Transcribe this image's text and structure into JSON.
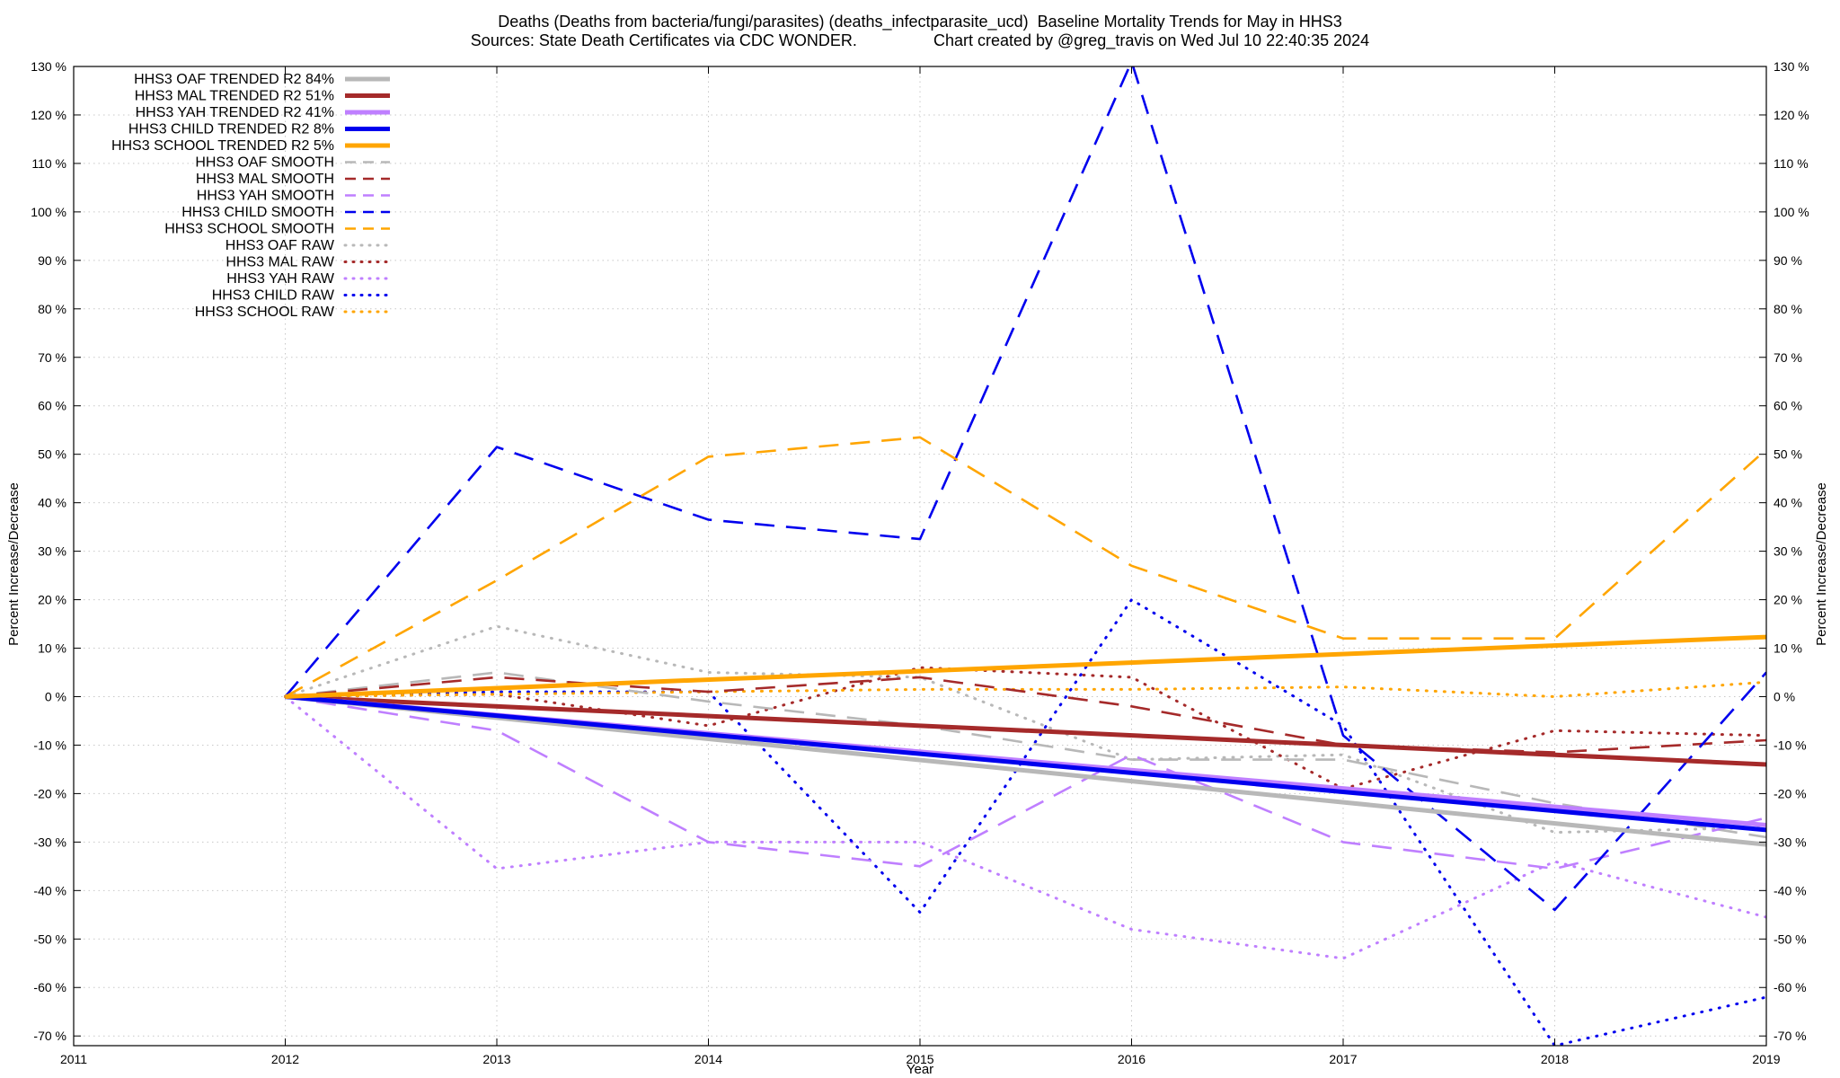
{
  "chart_data": {
    "type": "line",
    "title": "Deaths (Deaths from bacteria/fungi/parasites) (deaths_infectparasite_ucd)  Baseline Mortality Trends for May in HHS3",
    "subtitle": "Sources: State Death Certificates via CDC WONDER.                 Chart created by @greg_travis on Wed Jul 10 22:40:35 2024",
    "xlabel": "Year",
    "ylabel": "Percent Increase/Decrease",
    "y2label": "Percent Increase/Decrease",
    "xlim": [
      2011,
      2019
    ],
    "ylim": [
      -72,
      130
    ],
    "xticks": [
      "2011",
      "2012",
      "2013",
      "2014",
      "2015",
      "2016",
      "2017",
      "2018",
      "2019"
    ],
    "yticks": [
      "130 %",
      "120 %",
      "110 %",
      "100 %",
      "90 %",
      "80 %",
      "70 %",
      "60 %",
      "50 %",
      "40 %",
      "30 %",
      "20 %",
      "10 %",
      "0 %",
      "-10 %",
      "-20 %",
      "-30 %",
      "-40 %",
      "-50 %",
      "-60 %",
      "-70 %"
    ],
    "grid": true,
    "legend_position": "top-left",
    "series": [
      {
        "name": "HHS3 OAF TRENDED R2  84%",
        "style": "trend",
        "color": "#b8b8b8",
        "x": [
          2012,
          2019
        ],
        "y": [
          0,
          -30.5
        ]
      },
      {
        "name": "HHS3 MAL TRENDED R2  51%",
        "style": "trend",
        "color": "#a52a2a",
        "x": [
          2012,
          2019
        ],
        "y": [
          0,
          -14
        ]
      },
      {
        "name": "HHS3 YAH TRENDED R2  41%",
        "style": "trend",
        "color": "#bf7fff",
        "x": [
          2012,
          2019
        ],
        "y": [
          0,
          -26.5
        ]
      },
      {
        "name": "HHS3 CHILD TRENDED R2   8%",
        "style": "trend",
        "color": "#0000ee",
        "x": [
          2012,
          2019
        ],
        "y": [
          0,
          -27.5
        ]
      },
      {
        "name": "HHS3 SCHOOL TRENDED R2   5%",
        "style": "trend",
        "color": "#ffa500",
        "x": [
          2012,
          2019
        ],
        "y": [
          0,
          12.3
        ]
      },
      {
        "name": "HHS3 OAF SMOOTH",
        "style": "smooth",
        "color": "#b8b8b8",
        "x": [
          2012,
          2013,
          2014,
          2015,
          2016,
          2017,
          2018,
          2019
        ],
        "y": [
          0,
          5,
          -1,
          -6,
          -13,
          -13,
          -22,
          -29
        ]
      },
      {
        "name": "HHS3 MAL SMOOTH",
        "style": "smooth",
        "color": "#a52a2a",
        "x": [
          2012,
          2013,
          2014,
          2015,
          2016,
          2017,
          2018,
          2019
        ],
        "y": [
          0,
          4,
          1,
          4,
          -2,
          -10,
          -11.5,
          -9
        ]
      },
      {
        "name": "HHS3 YAH SMOOTH",
        "style": "smooth",
        "color": "#bf7fff",
        "x": [
          2012,
          2013,
          2014,
          2015,
          2016,
          2017,
          2018,
          2019
        ],
        "y": [
          0,
          -7,
          -30,
          -35,
          -12,
          -30,
          -35.5,
          -25
        ]
      },
      {
        "name": "HHS3 CHILD SMOOTH",
        "style": "smooth",
        "color": "#0000ee",
        "x": [
          2012,
          2013,
          2014,
          2015,
          2016,
          2017,
          2018,
          2019
        ],
        "y": [
          0,
          51.5,
          36.5,
          32.5,
          131,
          -8,
          -44,
          5
        ]
      },
      {
        "name": "HHS3 SCHOOL SMOOTH",
        "style": "smooth",
        "color": "#ffa500",
        "x": [
          2012,
          2013,
          2014,
          2015,
          2016,
          2017,
          2018,
          2019
        ],
        "y": [
          0,
          24,
          49.5,
          53.5,
          27,
          12,
          12,
          51
        ]
      },
      {
        "name": "HHS3 OAF RAW",
        "style": "raw",
        "color": "#b8b8b8",
        "x": [
          2012,
          2013,
          2014,
          2015,
          2016,
          2017,
          2018,
          2019
        ],
        "y": [
          0,
          14.5,
          5,
          4,
          -13,
          -12,
          -28,
          -27
        ]
      },
      {
        "name": "HHS3 MAL RAW",
        "style": "raw",
        "color": "#a52a2a",
        "x": [
          2012,
          2013,
          2014,
          2015,
          2016,
          2017,
          2018,
          2019
        ],
        "y": [
          0,
          0.5,
          -6,
          6,
          4,
          -19,
          -7,
          -8
        ]
      },
      {
        "name": "HHS3 YAH RAW",
        "style": "raw",
        "color": "#bf7fff",
        "x": [
          2012,
          2013,
          2014,
          2015,
          2016,
          2017,
          2018,
          2019
        ],
        "y": [
          0,
          -35.5,
          -30,
          -30,
          -48,
          -54,
          -34,
          -45.5
        ]
      },
      {
        "name": "HHS3 CHILD RAW",
        "style": "raw",
        "color": "#0000ee",
        "x": [
          2012,
          2013,
          2014,
          2015,
          2016,
          2017,
          2018,
          2019
        ],
        "y": [
          0,
          1,
          1,
          -44.5,
          20,
          -6,
          -72,
          -62
        ]
      },
      {
        "name": "HHS3 SCHOOL RAW",
        "style": "raw",
        "color": "#ffa500",
        "x": [
          2012,
          2013,
          2014,
          2015,
          2016,
          2017,
          2018,
          2019
        ],
        "y": [
          0,
          0.5,
          1,
          1.5,
          1.5,
          2,
          0,
          3
        ]
      }
    ]
  }
}
